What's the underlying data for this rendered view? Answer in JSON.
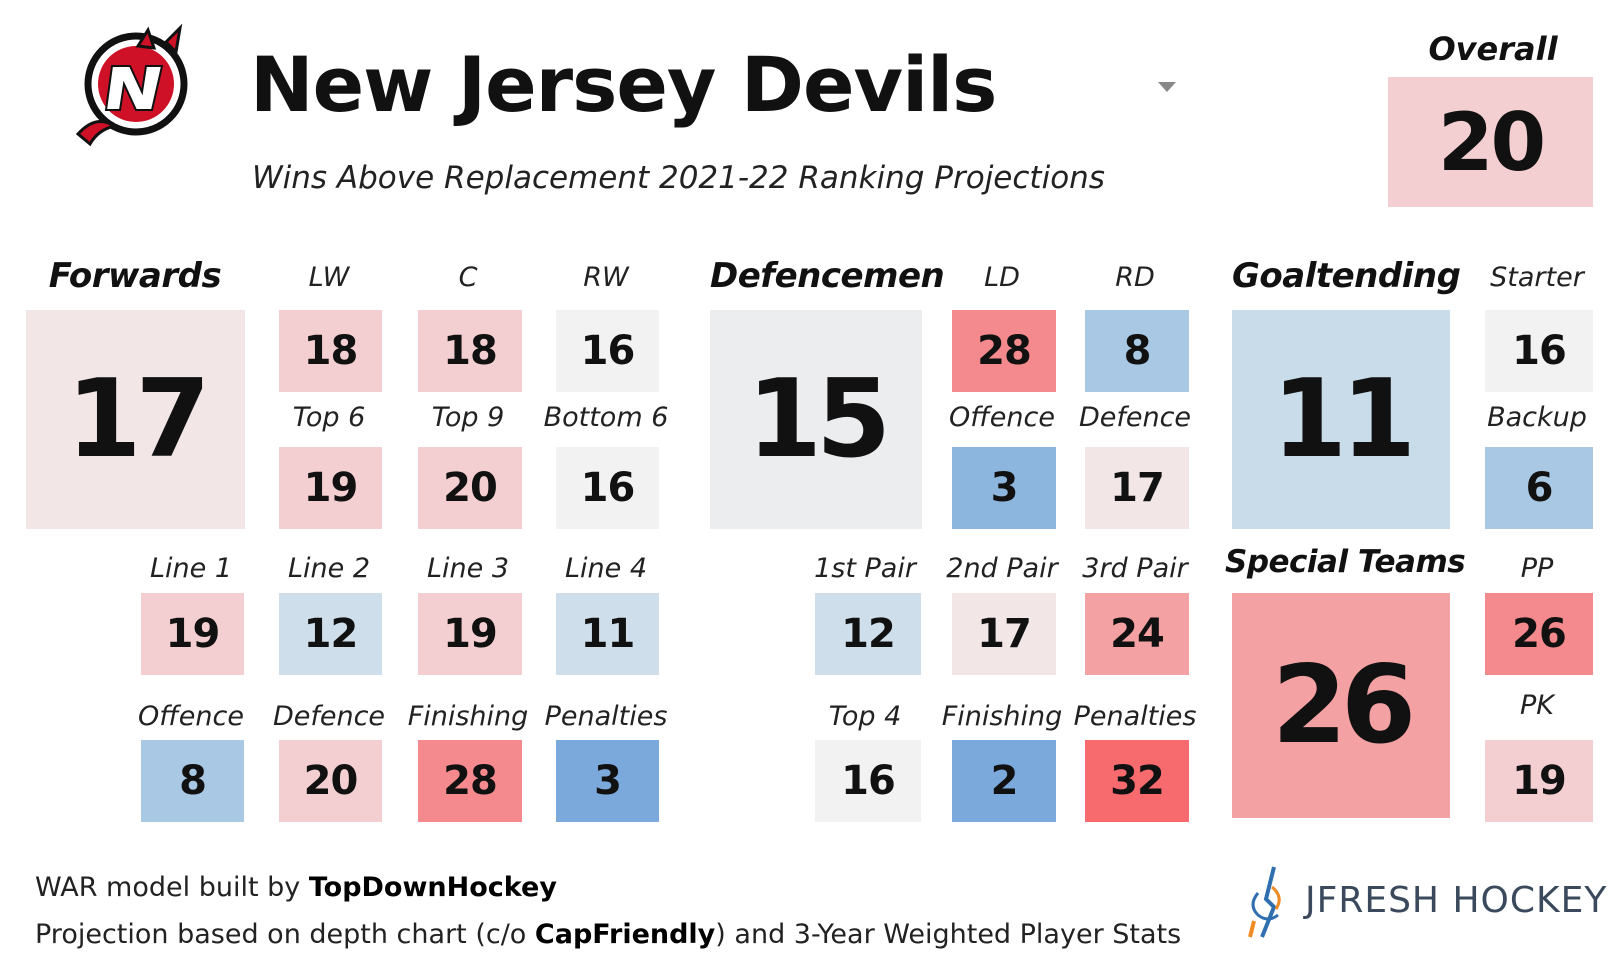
{
  "header": {
    "team_name": "New Jersey Devils",
    "subtitle": "Wins Above Replacement 2021-22 Ranking Projections",
    "overall_label": "Overall",
    "overall_value": "20"
  },
  "forwards": {
    "label": "Forwards",
    "value": "17",
    "positions": [
      {
        "label": "LW",
        "value": "18"
      },
      {
        "label": "C",
        "value": "18"
      },
      {
        "label": "RW",
        "value": "16"
      }
    ],
    "groups": [
      {
        "label": "Top 6",
        "value": "19"
      },
      {
        "label": "Top 9",
        "value": "20"
      },
      {
        "label": "Bottom 6",
        "value": "16"
      }
    ],
    "lines": [
      {
        "label": "Line 1",
        "value": "19"
      },
      {
        "label": "Line 2",
        "value": "12"
      },
      {
        "label": "Line 3",
        "value": "19"
      },
      {
        "label": "Line 4",
        "value": "11"
      }
    ],
    "components": [
      {
        "label": "Offence",
        "value": "8"
      },
      {
        "label": "Defence",
        "value": "20"
      },
      {
        "label": "Finishing",
        "value": "28"
      },
      {
        "label": "Penalties",
        "value": "3"
      }
    ]
  },
  "defencemen": {
    "label": "Defencemen",
    "value": "15",
    "positions": [
      {
        "label": "LD",
        "value": "28"
      },
      {
        "label": "RD",
        "value": "8"
      }
    ],
    "components_top": [
      {
        "label": "Offence",
        "value": "3"
      },
      {
        "label": "Defence",
        "value": "17"
      }
    ],
    "pairs": [
      {
        "label": "1st Pair",
        "value": "12"
      },
      {
        "label": "2nd Pair",
        "value": "17"
      },
      {
        "label": "3rd Pair",
        "value": "24"
      }
    ],
    "components_bottom": [
      {
        "label": "Top 4",
        "value": "16"
      },
      {
        "label": "Finishing",
        "value": "2"
      },
      {
        "label": "Penalties",
        "value": "32"
      }
    ]
  },
  "goaltending": {
    "label": "Goaltending",
    "value": "11",
    "starter": {
      "label": "Starter",
      "value": "16"
    },
    "backup": {
      "label": "Backup",
      "value": "6"
    }
  },
  "special_teams": {
    "label": "Special Teams",
    "value": "26",
    "pp": {
      "label": "PP",
      "value": "26"
    },
    "pk": {
      "label": "PK",
      "value": "19"
    }
  },
  "footer": {
    "line1_prefix": "WAR model built by ",
    "line1_bold": "TopDownHockey",
    "line2_prefix": "Projection based on depth chart (c/o ",
    "line2_bold": "CapFriendly",
    "line2_suffix": ") and 3-Year Weighted Player Stats",
    "brand": "JFRESH HOCKEY"
  },
  "colors": {
    "red_strong": "#f76b6f",
    "red": "#f48a8d",
    "red_mid": "#f3a1a3",
    "pink": "#f4cfd1",
    "pink_light": "#f2e6e7",
    "neutral": "#f2f2f2",
    "blue_light": "#cfdeeb",
    "blue_mid": "#a8c8e3",
    "blue": "#8db6df",
    "blue_strong": "#7ca9dc"
  }
}
